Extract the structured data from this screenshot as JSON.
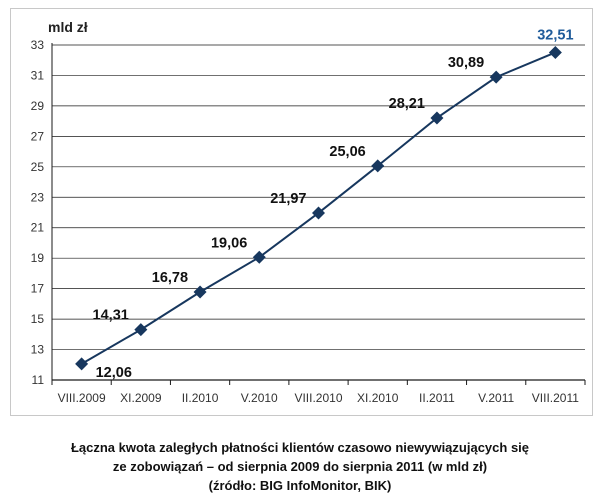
{
  "chart_data": {
    "type": "line",
    "y_unit_label": "mld zł",
    "categories": [
      "VIII.2009",
      "XI.2009",
      "II.2010",
      "V.2010",
      "VIII.2010",
      "XI.2010",
      "II.2011",
      "V.2011",
      "VIII.2011"
    ],
    "series": [
      {
        "values": [
          12.06,
          14.31,
          16.78,
          19.06,
          21.97,
          25.06,
          28.21,
          30.89,
          32.51
        ],
        "color": "#17375e",
        "marker": "diamond"
      }
    ],
    "data_labels": [
      "12,06",
      "14,31",
      "16,78",
      "19,06",
      "21,97",
      "25,06",
      "28,21",
      "30,89",
      "32,51"
    ],
    "highlight_color": "#1f5b9a",
    "ylim": [
      11,
      33
    ],
    "yticks": [
      11,
      13,
      15,
      17,
      19,
      21,
      23,
      25,
      27,
      29,
      31,
      33
    ],
    "grid": true,
    "legend": "none"
  },
  "caption": {
    "line1": "Łączna kwota zaległych płatności klientów czasowo niewywiązujących się",
    "line2": "ze zobowiązań – od sierpnia 2009 do sierpnia 2011 (w mld zł)",
    "line3": "(źródło: BIG InfoMonitor, BIK)"
  }
}
